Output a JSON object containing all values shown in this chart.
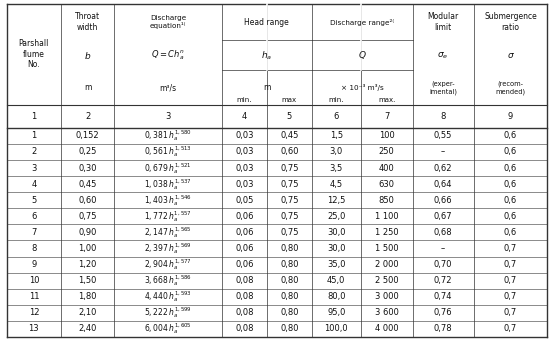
{
  "col_numbers": [
    "1",
    "2",
    "3",
    "4",
    "5",
    "6",
    "7",
    "8",
    "9"
  ],
  "data": [
    [
      "1",
      "0,152",
      "0,381",
      "1,580",
      "0,03",
      "0,45",
      "1,5",
      "100",
      "0,55",
      "0,6"
    ],
    [
      "2",
      "0,25",
      "0,561",
      "1,513",
      "0,03",
      "0,60",
      "3,0",
      "250",
      "–",
      "0,6"
    ],
    [
      "3",
      "0,30",
      "0,679",
      "1,521",
      "0,03",
      "0,75",
      "3,5",
      "400",
      "0,62",
      "0,6"
    ],
    [
      "4",
      "0,45",
      "1,038",
      "1,537",
      "0,03",
      "0,75",
      "4,5",
      "630",
      "0,64",
      "0,6"
    ],
    [
      "5",
      "0,60",
      "1,403",
      "1,546",
      "0,05",
      "0,75",
      "12,5",
      "850",
      "0,66",
      "0,6"
    ],
    [
      "6",
      "0,75",
      "1,772",
      "1,557",
      "0,06",
      "0,75",
      "25,0",
      "1 100",
      "0,67",
      "0,6"
    ],
    [
      "7",
      "0,90",
      "2,147",
      "1,565",
      "0,06",
      "0,75",
      "30,0",
      "1 250",
      "0,68",
      "0,6"
    ],
    [
      "8",
      "1,00",
      "2,397",
      "1,569",
      "0,06",
      "0,80",
      "30,0",
      "1 500",
      "–",
      "0,7"
    ],
    [
      "9",
      "1,20",
      "2,904",
      "1,577",
      "0,06",
      "0,80",
      "35,0",
      "2 000",
      "0,70",
      "0,7"
    ],
    [
      "10",
      "1,50",
      "3,668",
      "1,586",
      "0,08",
      "0,80",
      "45,0",
      "2 500",
      "0,72",
      "0,7"
    ],
    [
      "11",
      "1,80",
      "4,440",
      "1,593",
      "0,08",
      "0,80",
      "80,0",
      "3 000",
      "0,74",
      "0,7"
    ],
    [
      "12",
      "2,10",
      "5,222",
      "1,599",
      "0,08",
      "0,80",
      "95,0",
      "3 600",
      "0,76",
      "0,7"
    ],
    [
      "13",
      "2,40",
      "6,004",
      "1,605",
      "0,08",
      "0,80",
      "100,0",
      "4 000",
      "0,78",
      "0,7"
    ]
  ],
  "text_color": "#111111",
  "line_color": "#333333"
}
